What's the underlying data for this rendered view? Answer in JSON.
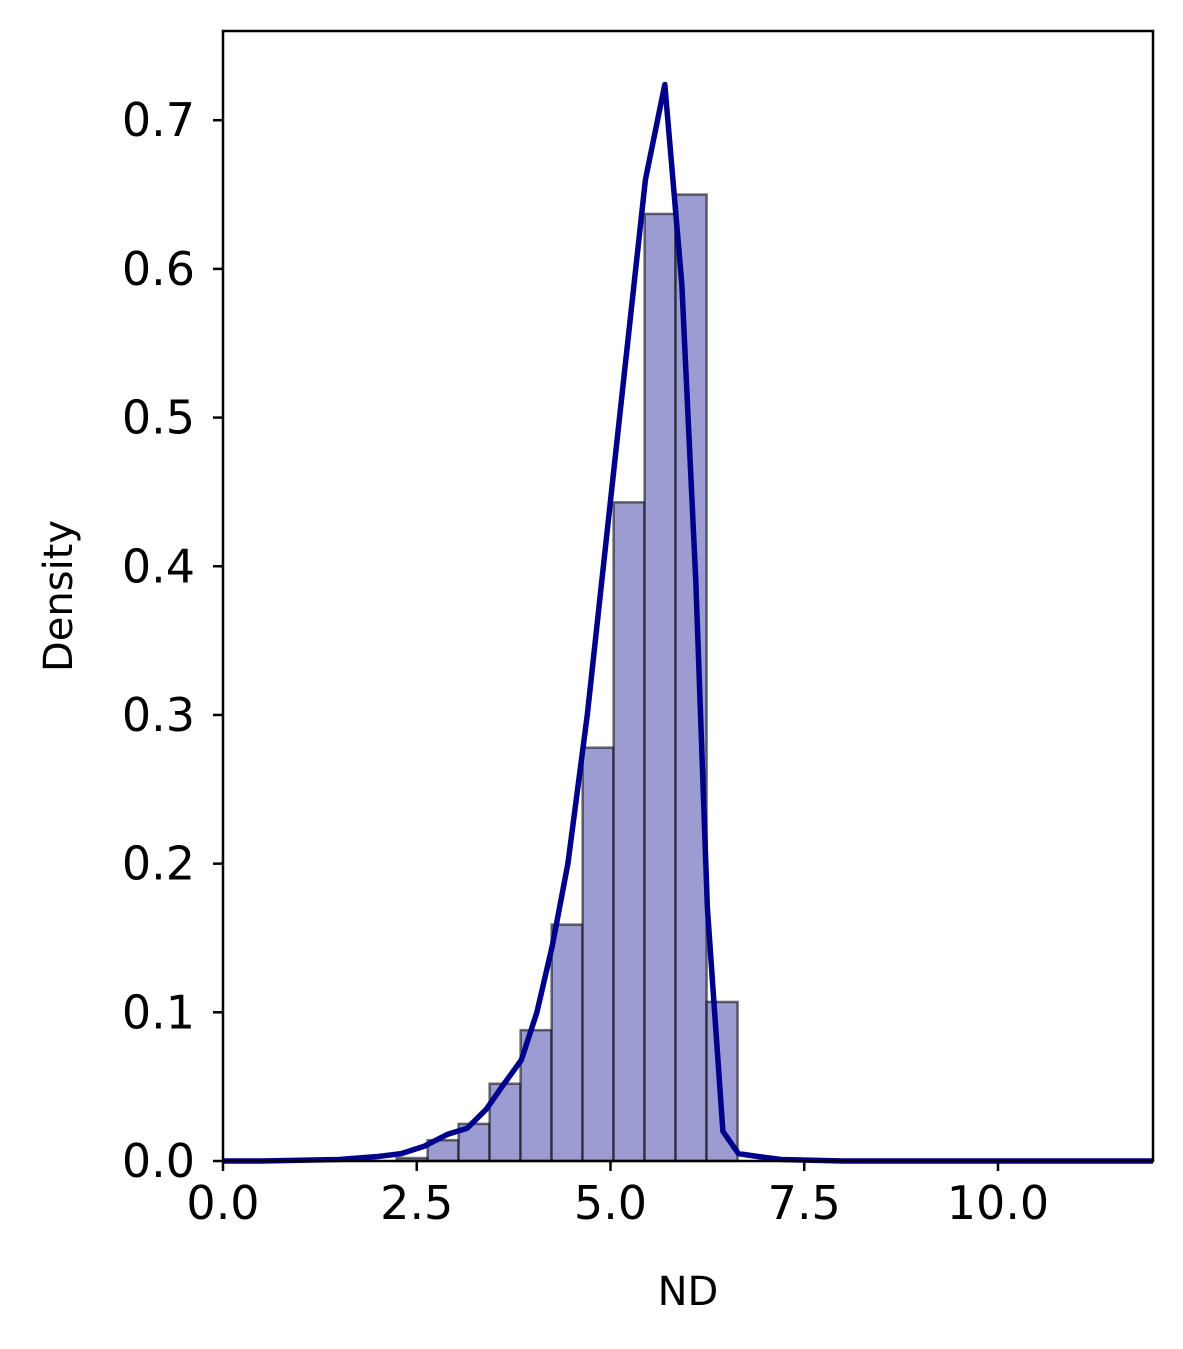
{
  "chart_data": {
    "type": "bar",
    "title": "",
    "xlabel": "ND",
    "ylabel": "Density",
    "xlim": [
      0,
      12
    ],
    "ylim": [
      0,
      0.76
    ],
    "xticks": [
      0.0,
      2.5,
      5.0,
      7.5,
      10.0
    ],
    "xtick_labels": [
      "0.0",
      "2.5",
      "5.0",
      "7.5",
      "10.0"
    ],
    "yticks": [
      0.0,
      0.1,
      0.2,
      0.3,
      0.4,
      0.5,
      0.6,
      0.7
    ],
    "ytick_labels": [
      "0.0",
      "0.1",
      "0.2",
      "0.3",
      "0.4",
      "0.5",
      "0.6",
      "0.7"
    ],
    "grid": false,
    "histogram": {
      "bin_edges": [
        2.24,
        2.64,
        3.04,
        3.44,
        3.84,
        4.24,
        4.64,
        5.04,
        5.44,
        5.84,
        6.24,
        6.64
      ],
      "density": [
        0.002,
        0.014,
        0.025,
        0.052,
        0.088,
        0.159,
        0.278,
        0.443,
        0.637,
        0.65,
        0.107
      ],
      "fill_color": "#9b9cd1",
      "edge_color": "#000000"
    },
    "kde": {
      "x": [
        0.0,
        0.5,
        1.0,
        1.5,
        2.0,
        2.3,
        2.6,
        2.9,
        3.15,
        3.4,
        3.6,
        3.85,
        4.05,
        4.25,
        4.45,
        4.7,
        4.95,
        5.2,
        5.45,
        5.7,
        5.92,
        6.1,
        6.25,
        6.45,
        6.65,
        6.9,
        7.2,
        7.6,
        8.0,
        9.0,
        10.0,
        11.0,
        12.0
      ],
      "y": [
        0.0,
        0.0,
        0.0005,
        0.001,
        0.003,
        0.005,
        0.01,
        0.018,
        0.022,
        0.035,
        0.05,
        0.068,
        0.1,
        0.145,
        0.2,
        0.3,
        0.42,
        0.54,
        0.66,
        0.724,
        0.59,
        0.39,
        0.17,
        0.02,
        0.005,
        0.003,
        0.001,
        0.0005,
        0.0,
        0.0,
        0.0,
        0.0,
        0.0
      ],
      "color": "#00008b"
    }
  }
}
